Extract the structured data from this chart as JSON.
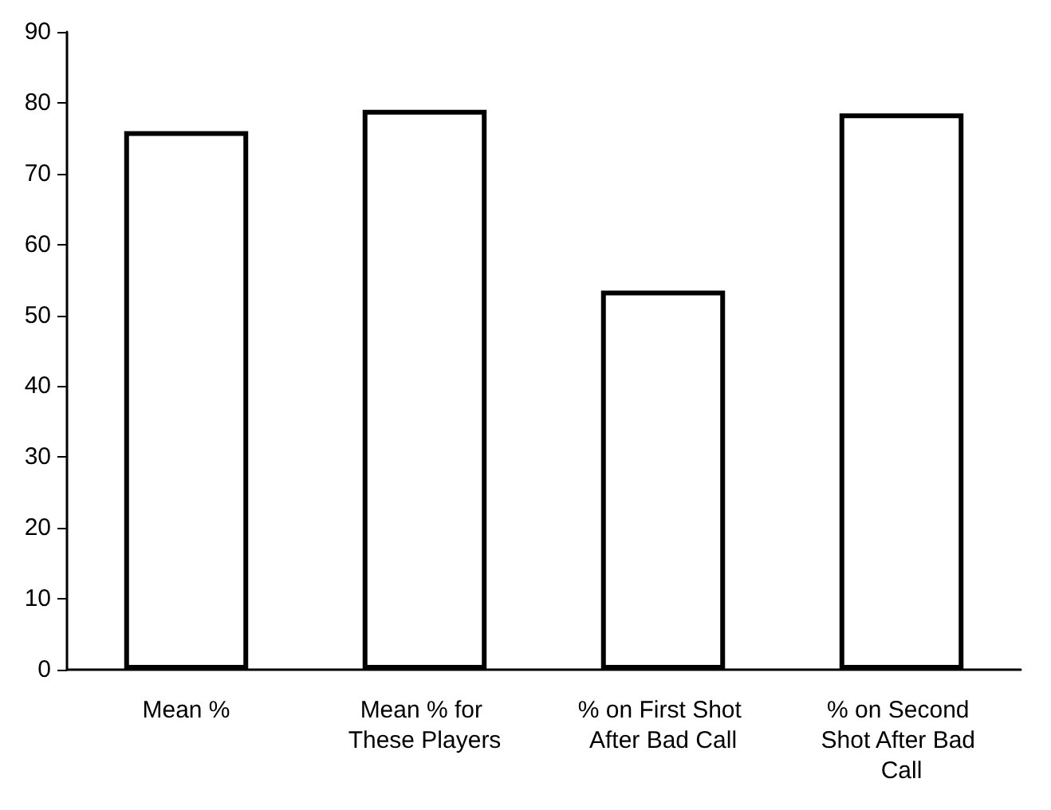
{
  "chart_data": {
    "type": "bar",
    "categories": [
      "Mean %",
      "Mean % for These Players",
      "% on First Shot After Bad Call",
      "% on Second Shot After Bad Call"
    ],
    "values": [
      76,
      79,
      53.5,
      78.5
    ],
    "color": "#ffffff",
    "ylim": [
      0,
      90
    ],
    "yticks": [
      0,
      10,
      20,
      30,
      40,
      50,
      60,
      70,
      80,
      90
    ],
    "grid": false
  }
}
